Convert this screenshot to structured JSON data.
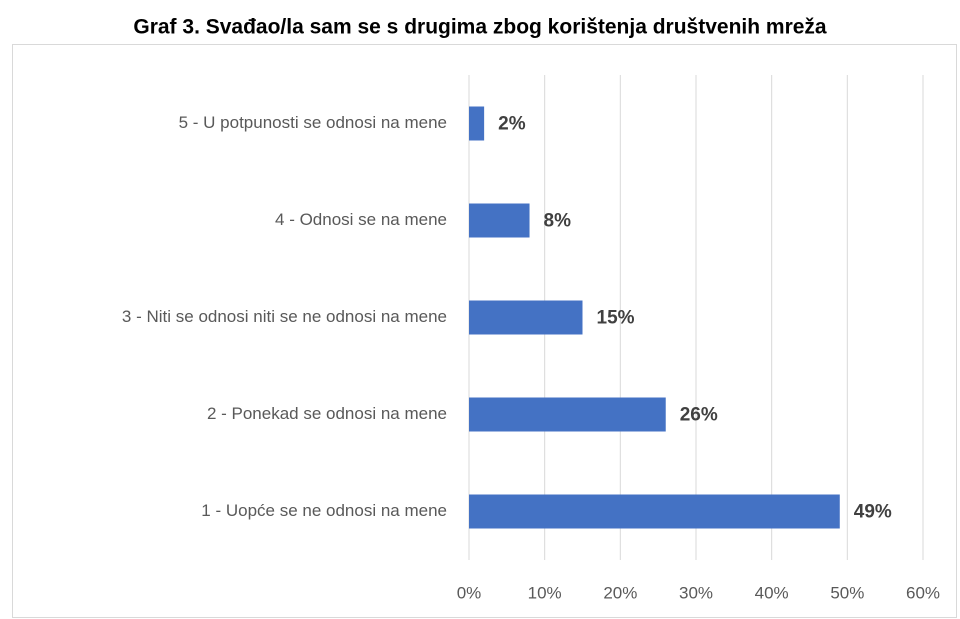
{
  "chart_data": {
    "type": "bar",
    "orientation": "horizontal",
    "title": "Graf 3. Svađao/la sam se s drugima zbog korištenja društvenih mreža",
    "categories": [
      "5 - U potpunosti se odnosi na mene",
      "4 - Odnosi se na mene",
      "3 - Niti se odnosi niti se ne odnosi na mene",
      "2 - Ponekad se odnosi na mene",
      "1 - Uopće se ne odnosi na mene"
    ],
    "values": [
      2,
      8,
      15,
      26,
      49
    ],
    "value_labels": [
      "2%",
      "8%",
      "15%",
      "26%",
      "49%"
    ],
    "color": "#4472c4",
    "xlim": [
      0,
      60
    ],
    "xticks": [
      {
        "value": 0,
        "label": "0%"
      },
      {
        "value": 10,
        "label": "10%"
      },
      {
        "value": 20,
        "label": "20%"
      },
      {
        "value": 30,
        "label": "30%"
      },
      {
        "value": 40,
        "label": "40%"
      },
      {
        "value": 50,
        "label": "50%"
      },
      {
        "value": 60,
        "label": "60%"
      }
    ],
    "grid": true
  }
}
